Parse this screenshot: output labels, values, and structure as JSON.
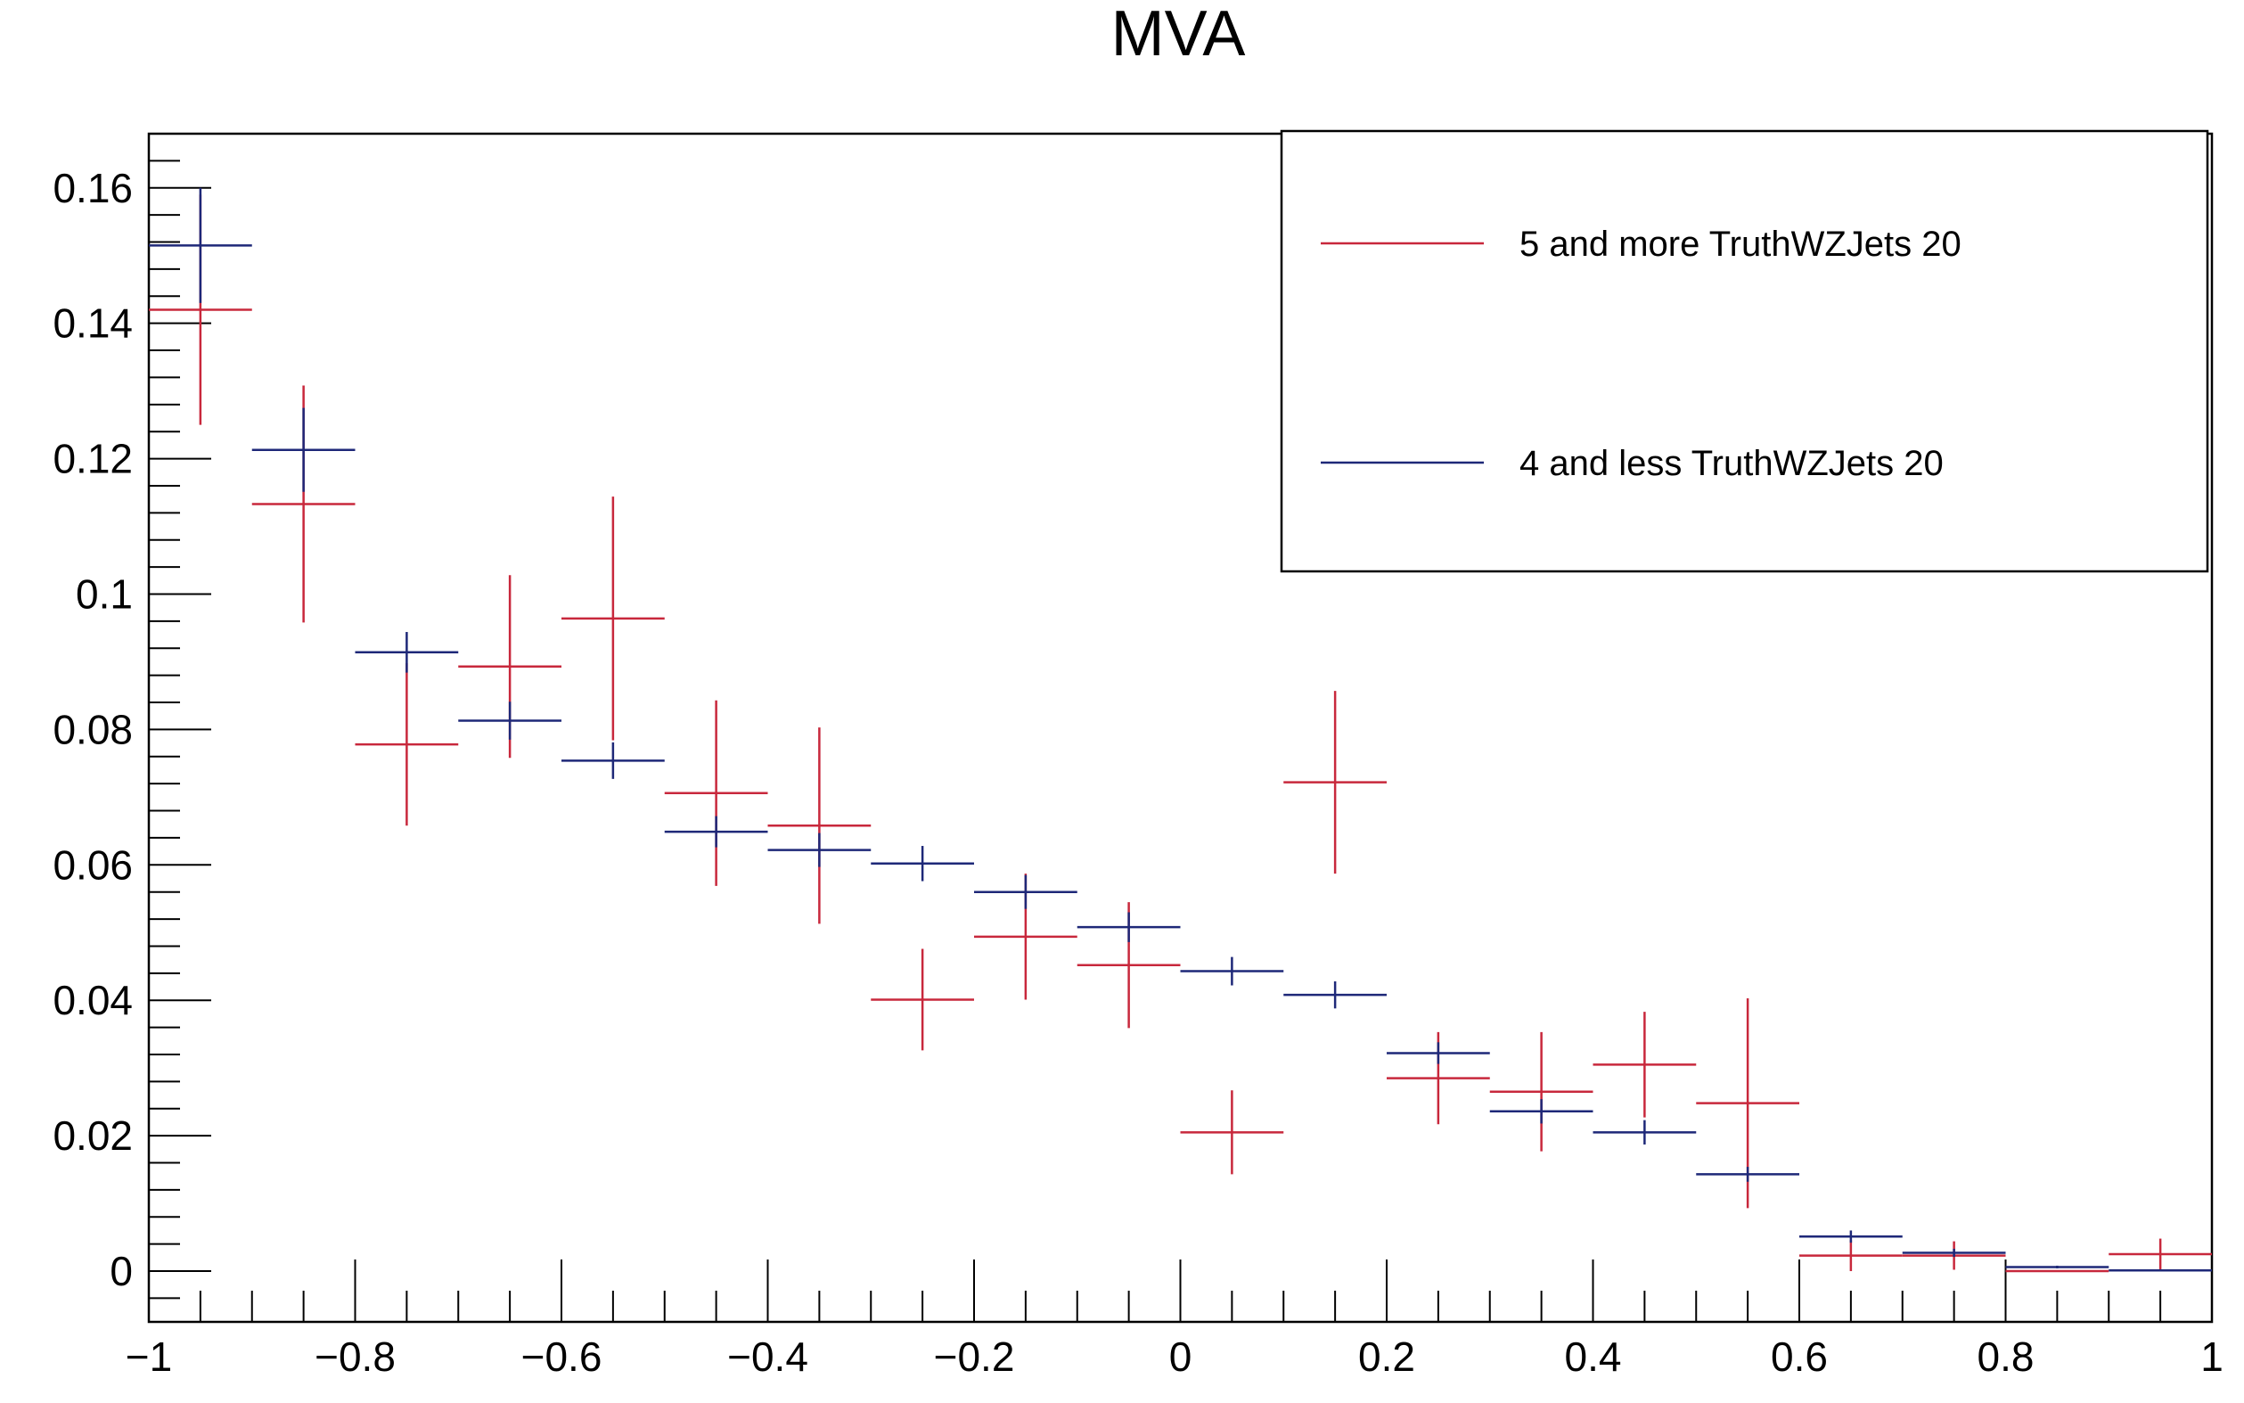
{
  "chart_data": {
    "type": "scatter",
    "title": "MVA",
    "xlabel": "",
    "ylabel": "",
    "xlim": [
      -1,
      1
    ],
    "ylim": [
      -0.0075,
      0.168
    ],
    "grid": false,
    "legend_position": "top-right",
    "bin_width": 0.1,
    "x_ticks": [
      -1,
      -0.8,
      -0.6,
      -0.4,
      -0.2,
      0,
      0.2,
      0.4,
      0.6,
      0.8,
      1
    ],
    "x_tick_labels": [
      "−1",
      "−0.8",
      "−0.6",
      "−0.4",
      "−0.2",
      "0",
      "0.2",
      "0.4",
      "0.6",
      "0.8",
      "1"
    ],
    "y_ticks": [
      0,
      0.02,
      0.04,
      0.06,
      0.08,
      0.1,
      0.12,
      0.14,
      0.16
    ],
    "y_tick_labels": [
      "0",
      "0.02",
      "0.04",
      "0.06",
      "0.08",
      "0.1",
      "0.12",
      "0.14",
      "0.16"
    ],
    "x": [
      -0.95,
      -0.85,
      -0.75,
      -0.65,
      -0.55,
      -0.45,
      -0.35,
      -0.25,
      -0.15,
      -0.05,
      0.05,
      0.15,
      0.25,
      0.35,
      0.45,
      0.55,
      0.65,
      0.75,
      0.85,
      0.95
    ],
    "series": [
      {
        "name": "5 and more TruthWZJets 20",
        "color": "#c8283c",
        "values": [
          0.142,
          0.1133,
          0.0778,
          0.0893,
          0.0964,
          0.0706,
          0.0658,
          0.0401,
          0.0494,
          0.0452,
          0.0205,
          0.0722,
          0.0285,
          0.0265,
          0.0305,
          0.0248,
          0.0023,
          0.0023,
          0.0,
          0.0025
        ],
        "errors": [
          0.017,
          0.0175,
          0.012,
          0.0135,
          0.018,
          0.0137,
          0.0145,
          0.0075,
          0.0093,
          0.0093,
          0.0062,
          0.0135,
          0.0068,
          0.0088,
          0.0078,
          0.0155,
          0.0023,
          0.0021,
          0.0,
          0.0023
        ]
      },
      {
        "name": "4 and less TruthWZJets 20",
        "color": "#1e2878",
        "values": [
          0.1515,
          0.1213,
          0.0914,
          0.0813,
          0.0754,
          0.0649,
          0.0622,
          0.0602,
          0.056,
          0.0508,
          0.0443,
          0.0408,
          0.0322,
          0.0236,
          0.0205,
          0.0143,
          0.0051,
          0.0027,
          0.0006,
          0.0001
        ],
        "errors": [
          0.0085,
          0.0062,
          0.003,
          0.0028,
          0.0027,
          0.0023,
          0.0025,
          0.0026,
          0.0025,
          0.0022,
          0.0021,
          0.002,
          0.0016,
          0.0018,
          0.0018,
          0.0011,
          0.0009,
          0.0006,
          0.0002,
          0.0001
        ]
      }
    ]
  }
}
